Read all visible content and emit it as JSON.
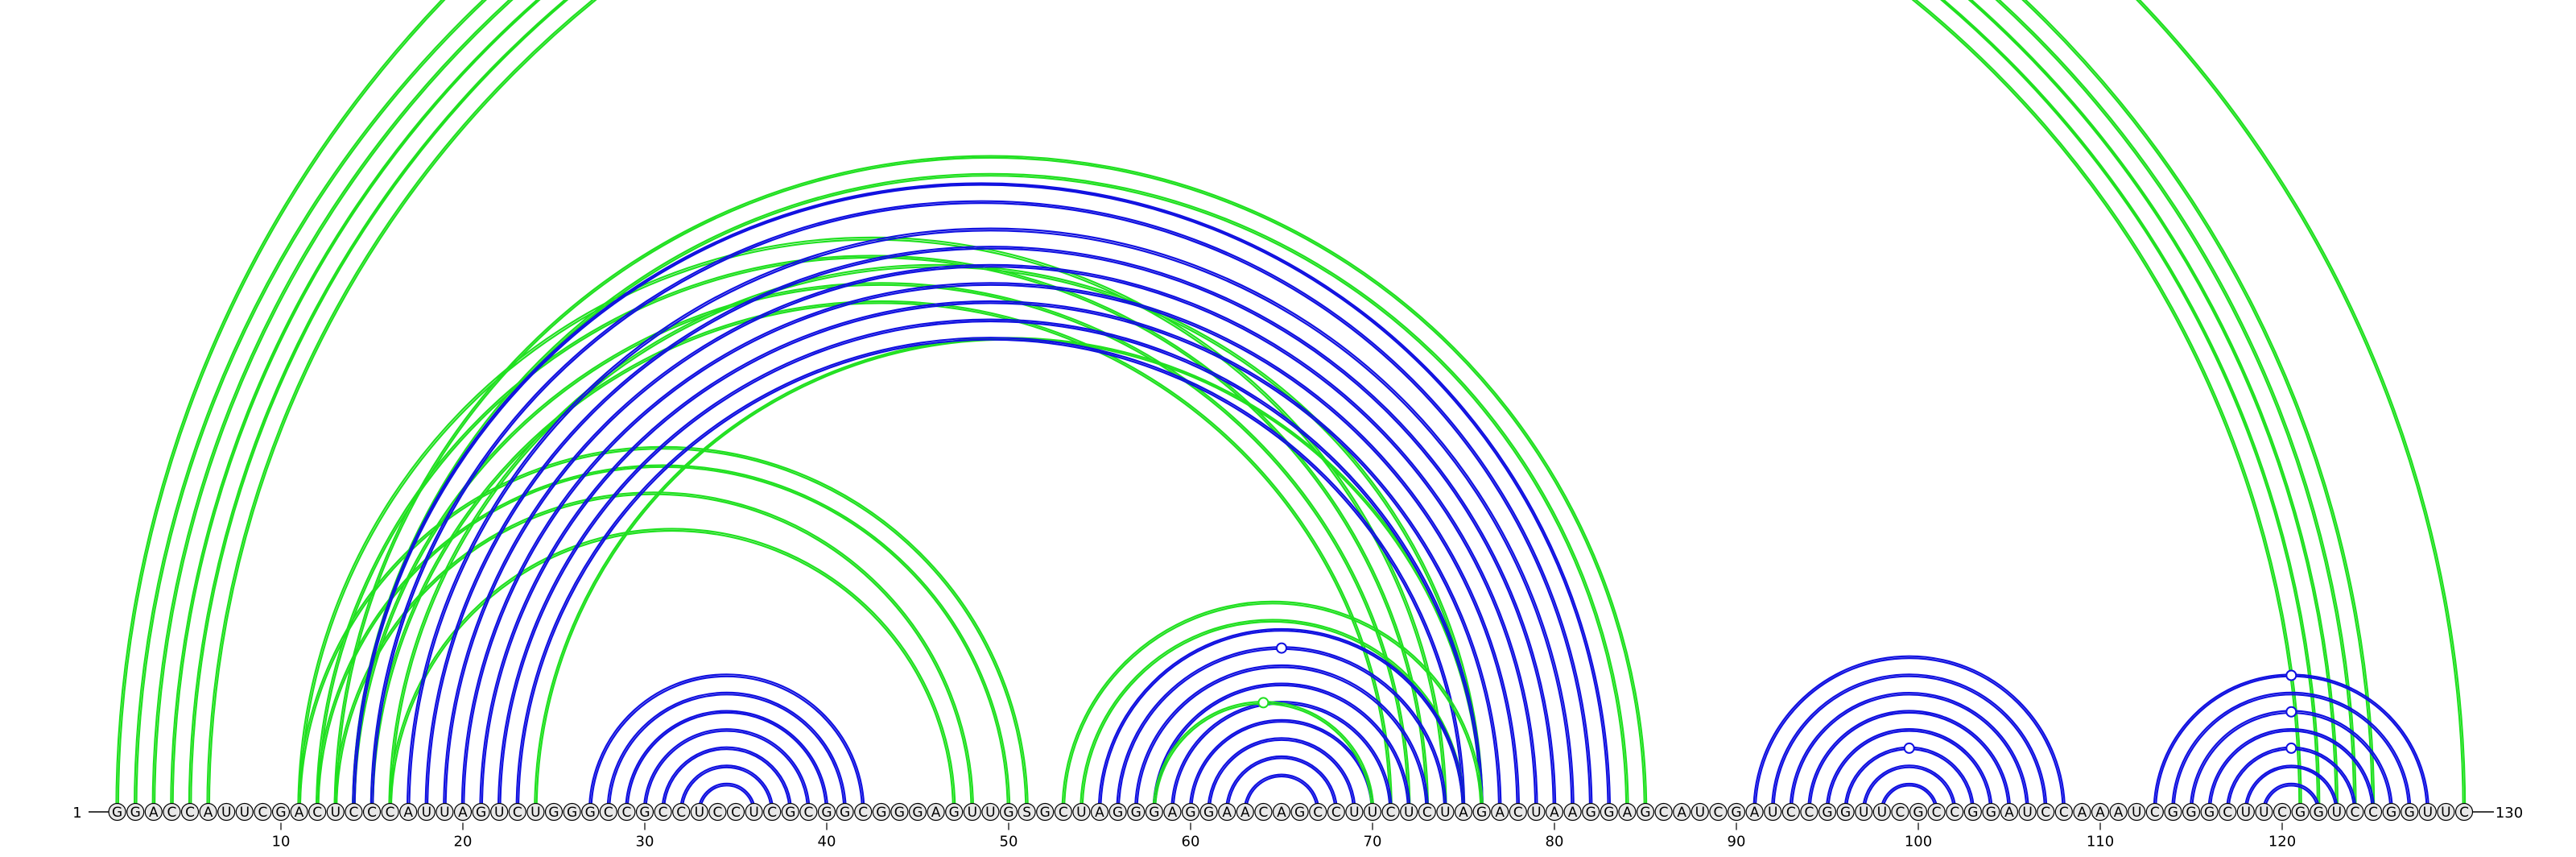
{
  "sequence": "GGACCAUUCGACUCCCAUUAGUCUGGGCCGCCUCCUCGCGGCGGGAGUUGSGCUAGGGAGGAACAGCCUUCUCUAGACUAAGGAGCAUCGAUCCGGUUCGCCGGAUCCAAAUCGGGCUUCGGUCCGGUUC",
  "start_label": "1",
  "end_label": "130",
  "tick_labels": [
    "10",
    "20",
    "30",
    "40",
    "50",
    "60",
    "70",
    "80",
    "90",
    "100",
    "110",
    "120"
  ],
  "colors": {
    "blue": "#1010e0",
    "green": "#20e020",
    "nucleotide_fill": "#e8e8e8",
    "nucleotide_stroke": "#000000"
  },
  "pair_groups": [
    {
      "color": "green",
      "helix": [
        [
          2,
          125
        ],
        [
          3,
          124
        ],
        [
          4,
          123
        ],
        [
          5,
          122
        ],
        [
          6,
          121
        ]
      ]
    },
    {
      "color": "green",
      "helix": [
        [
          1,
          130
        ]
      ]
    },
    {
      "color": "green",
      "helix": [
        [
          11,
          74
        ],
        [
          12,
          73
        ],
        [
          14,
          72
        ],
        [
          15,
          71
        ]
      ]
    },
    {
      "color": "green",
      "helix": [
        [
          13,
          85
        ],
        [
          14,
          84
        ]
      ]
    },
    {
      "color": "green",
      "helix": [
        [
          16,
          76
        ]
      ]
    },
    {
      "color": "green",
      "helix": [
        [
          24,
          76
        ]
      ]
    },
    {
      "color": "green",
      "helix": [
        [
          11,
          51
        ],
        [
          12,
          50
        ],
        [
          13,
          48
        ],
        [
          16,
          47
        ]
      ]
    },
    {
      "color": "blue",
      "helix": [
        [
          14,
          83
        ],
        [
          15,
          82
        ],
        [
          17,
          81
        ],
        [
          18,
          80
        ],
        [
          19,
          79
        ],
        [
          20,
          78
        ]
      ]
    },
    {
      "color": "blue",
      "helix": [
        [
          21,
          77
        ],
        [
          22,
          76
        ],
        [
          23,
          75
        ]
      ]
    },
    {
      "color": "blue",
      "helix": [
        [
          27,
          42
        ],
        [
          28,
          41
        ],
        [
          29,
          40
        ],
        [
          30,
          39
        ],
        [
          31,
          38
        ],
        [
          32,
          37
        ],
        [
          33,
          36
        ]
      ]
    },
    {
      "color": "green",
      "helix": [
        [
          53,
          76
        ],
        [
          54,
          75
        ]
      ]
    },
    {
      "color": "blue",
      "helix": [
        [
          55,
          75
        ],
        [
          56,
          74
        ],
        [
          57,
          73
        ],
        [
          58,
          72
        ],
        [
          59,
          71
        ],
        [
          60,
          70
        ],
        [
          61,
          69
        ],
        [
          62,
          68
        ],
        [
          63,
          67
        ]
      ]
    },
    {
      "color": "green",
      "helix": [
        [
          58,
          70
        ]
      ]
    },
    {
      "color": "blue",
      "helix": [
        [
          91,
          108
        ],
        [
          92,
          107
        ],
        [
          93,
          106
        ],
        [
          94,
          105
        ],
        [
          95,
          104
        ],
        [
          96,
          103
        ],
        [
          97,
          102
        ],
        [
          98,
          101
        ]
      ]
    },
    {
      "color": "blue",
      "helix": [
        [
          113,
          128
        ],
        [
          114,
          127
        ],
        [
          115,
          126
        ],
        [
          116,
          125
        ],
        [
          117,
          124
        ],
        [
          118,
          123
        ],
        [
          119,
          122
        ]
      ]
    }
  ],
  "markers": [
    {
      "color": "green",
      "pair": [
        2,
        125
      ]
    },
    {
      "color": "blue",
      "pair": [
        56,
        74
      ]
    },
    {
      "color": "green",
      "pair": [
        58,
        70
      ]
    },
    {
      "color": "blue",
      "pair": [
        96,
        103
      ]
    },
    {
      "color": "blue",
      "pair": [
        113,
        128
      ]
    },
    {
      "color": "blue",
      "pair": [
        115,
        126
      ]
    },
    {
      "color": "blue",
      "pair": [
        117,
        124
      ]
    }
  ]
}
